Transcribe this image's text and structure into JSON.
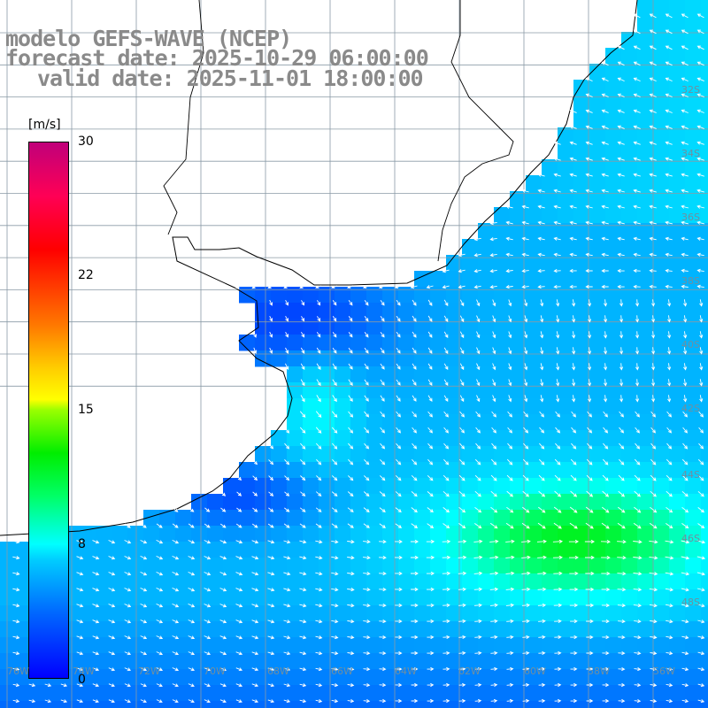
{
  "title": {
    "line1": "modelo GEFS-WAVE (NCEP)",
    "line2": "forecast date: 2025-10-29 06:00:00",
    "line3": "valid date: 2025-11-01 18:00:00"
  },
  "colorbar": {
    "unit": "[m/s]",
    "min": 0,
    "max": 30,
    "ticks": [
      {
        "label": "30",
        "value": 30
      },
      {
        "label": "22",
        "value": 22
      },
      {
        "label": "15",
        "value": 15
      },
      {
        "label": "8",
        "value": 8
      },
      {
        "label": "0",
        "value": 0
      }
    ]
  },
  "lat_labels": [
    "32S",
    "34S",
    "36S",
    "38S",
    "40S",
    "42S",
    "44S",
    "46S",
    "48S"
  ],
  "lon_labels": [
    "76W",
    "74W",
    "72W",
    "70W",
    "68W",
    "66W",
    "64W",
    "62W",
    "60W",
    "58W",
    "56W"
  ]
}
